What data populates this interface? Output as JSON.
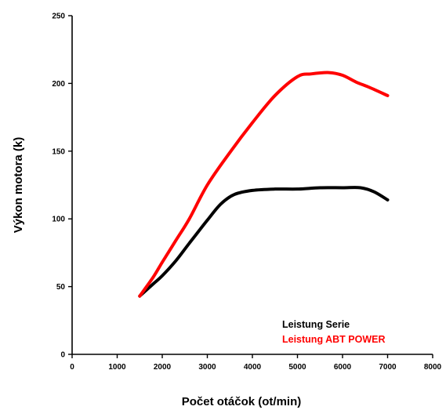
{
  "chart_data": {
    "type": "line",
    "title": "",
    "xlabel": "Počet otáčok (ot/min)",
    "ylabel": "Výkon motora (k)",
    "xlim": [
      0,
      8000
    ],
    "ylim": [
      0,
      250
    ],
    "xticks": [
      0,
      1000,
      2000,
      3000,
      4000,
      5000,
      6000,
      7000,
      8000
    ],
    "yticks": [
      0,
      50,
      100,
      150,
      200,
      250
    ],
    "grid": false,
    "legend_position": "bottom-right",
    "series": [
      {
        "name": "Leistung Serie",
        "color": "#000000",
        "x": [
          1500,
          1800,
          2000,
          2300,
          2600,
          3000,
          3300,
          3600,
          4000,
          4500,
          5000,
          5500,
          6000,
          6400,
          6700,
          7000
        ],
        "y": [
          43,
          52,
          58,
          69,
          82,
          99,
          111,
          118,
          121,
          122,
          122,
          123,
          123,
          123,
          120,
          114
        ]
      },
      {
        "name": "Leistung ABT POWER",
        "color": "#ff0000",
        "x": [
          1500,
          1800,
          2000,
          2300,
          2600,
          3000,
          3500,
          4000,
          4500,
          5000,
          5300,
          5700,
          6000,
          6300,
          6600,
          7000
        ],
        "y": [
          43,
          57,
          68,
          84,
          100,
          125,
          149,
          171,
          191,
          205,
          207,
          208,
          206,
          201,
          197,
          191
        ]
      }
    ]
  }
}
